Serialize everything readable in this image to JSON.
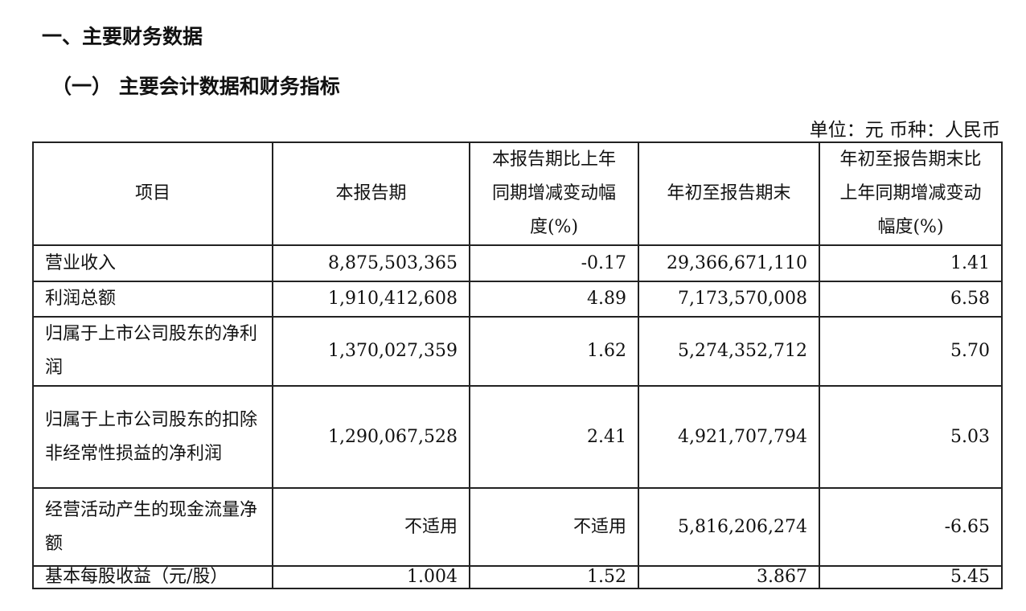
{
  "heading1": "一、主要财务数据",
  "heading2": "（一） 主要会计数据和财务指标",
  "unit_note": "单位：元  币种：人民币",
  "table": {
    "headers": [
      "项目",
      "本报告期",
      "本报告期比上年同期增减变动幅度(%)",
      "年初至报告期末",
      "年初至报告期末比上年同期增减变动幅度(%)"
    ],
    "rows": [
      [
        "营业收入",
        "8,875,503,365",
        "-0.17",
        "29,366,671,110",
        "1.41"
      ],
      [
        "利润总额",
        "1,910,412,608",
        "4.89",
        "7,173,570,008",
        "6.58"
      ],
      [
        "归属于上市公司股东的净利润",
        "1,370,027,359",
        "1.62",
        "5,274,352,712",
        "5.70"
      ],
      [
        "归属于上市公司股东的扣除非经常性损益的净利润",
        "1,290,067,528",
        "2.41",
        "4,921,707,794",
        "5.03"
      ],
      [
        "经营活动产生的现金流量净额",
        "不适用",
        "不适用",
        "5,816,206,274",
        "-6.65"
      ],
      [
        "基本每股收益（元/股）",
        "1.004",
        "1.52",
        "3.867",
        "5.45"
      ]
    ]
  }
}
